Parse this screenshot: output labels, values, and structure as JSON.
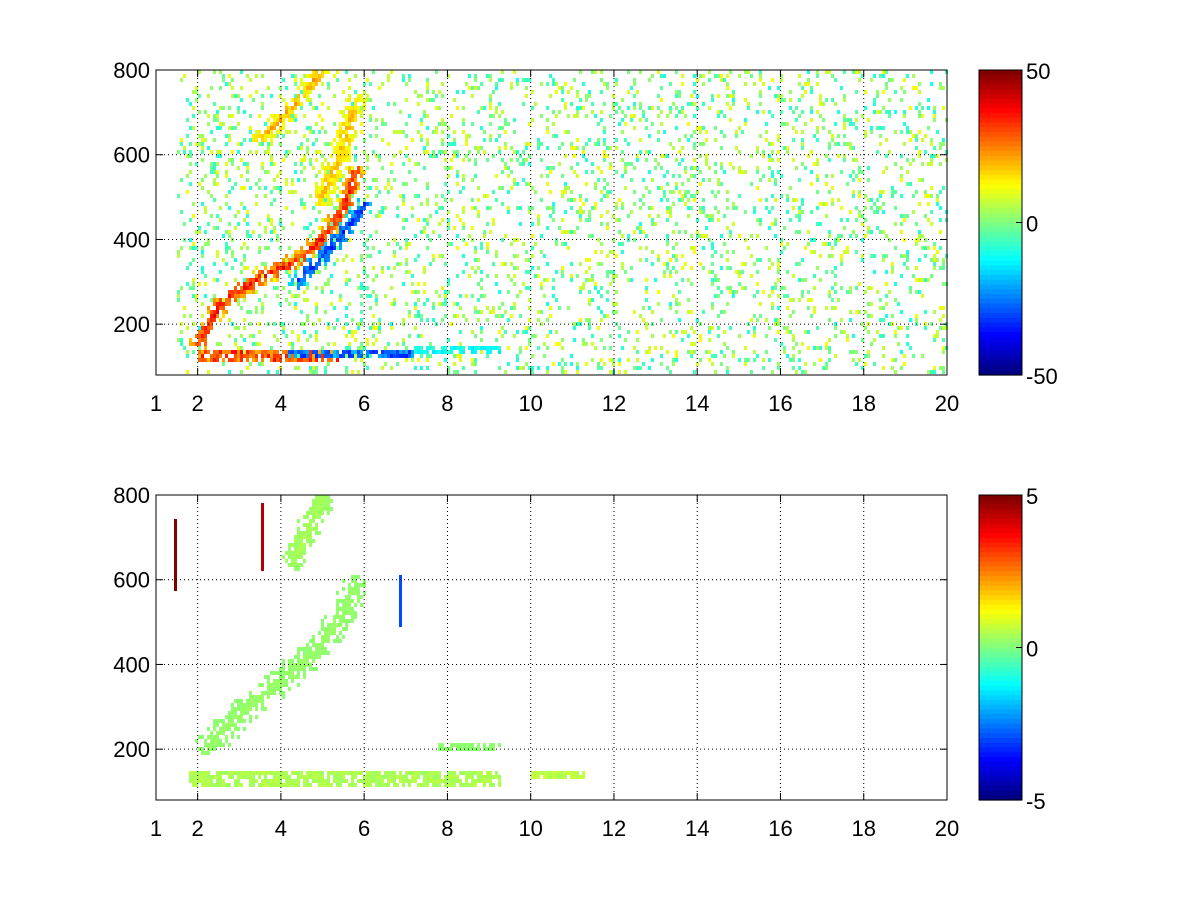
{
  "chart_data": [
    {
      "type": "heatmap",
      "title": "",
      "xlabel": "",
      "ylabel": "",
      "xlim": [
        1,
        20
      ],
      "ylim": [
        80,
        800
      ],
      "x_ticks": [
        1,
        2,
        4,
        6,
        8,
        10,
        12,
        14,
        16,
        18,
        20
      ],
      "y_ticks": [
        200,
        400,
        600,
        800
      ],
      "grid": true,
      "colormap": "jet",
      "clim": [
        -50,
        50
      ],
      "colorbar_ticks": [
        50,
        0,
        -50
      ],
      "colorbar_tick_labels": [
        "50",
        "0",
        "-50"
      ],
      "features": [
        {
          "kind": "curve",
          "points": [
            [
              2.0,
              150
            ],
            [
              2.5,
              240
            ],
            [
              3.0,
              280
            ],
            [
              3.5,
              310
            ],
            [
              4.0,
              330
            ],
            [
              4.5,
              360
            ],
            [
              5.0,
              400
            ],
            [
              5.5,
              470
            ],
            [
              5.8,
              560
            ]
          ],
          "value": 42,
          "width": 45
        },
        {
          "kind": "curve",
          "points": [
            [
              4.4,
              300
            ],
            [
              4.8,
              340
            ],
            [
              5.2,
              380
            ],
            [
              5.6,
              430
            ],
            [
              6.0,
              480
            ]
          ],
          "value": -40,
          "width": 40
        },
        {
          "kind": "curve",
          "points": [
            [
              3.5,
              640
            ],
            [
              4.0,
              680
            ],
            [
              4.5,
              740
            ],
            [
              4.9,
              790
            ]
          ],
          "value": 25,
          "width": 45
        },
        {
          "kind": "curve",
          "points": [
            [
              5.0,
              500
            ],
            [
              5.4,
              600
            ],
            [
              5.8,
              720
            ]
          ],
          "value": 22,
          "width": 60
        },
        {
          "kind": "band",
          "x": [
            2.0,
            5.5
          ],
          "y": 125,
          "value": 38,
          "width": 30
        },
        {
          "kind": "band",
          "x": [
            4.2,
            7.2
          ],
          "y": 130,
          "value": -35,
          "width": 25
        },
        {
          "kind": "band",
          "x": [
            7.2,
            9.3
          ],
          "y": 140,
          "value": -15,
          "width": 20
        },
        {
          "kind": "scatter",
          "x": [
            1.5,
            20
          ],
          "y": [
            80,
            800
          ],
          "value_range": [
            -10,
            12
          ],
          "density": 0.16
        }
      ]
    },
    {
      "type": "heatmap",
      "title": "",
      "xlabel": "",
      "ylabel": "",
      "xlim": [
        1,
        20
      ],
      "ylim": [
        80,
        800
      ],
      "x_ticks": [
        1,
        2,
        4,
        6,
        8,
        10,
        12,
        14,
        16,
        18,
        20
      ],
      "y_ticks": [
        200,
        400,
        600,
        800
      ],
      "grid": true,
      "colormap": "jet",
      "clim": [
        -5,
        5
      ],
      "colorbar_ticks": [
        5,
        0,
        -5
      ],
      "colorbar_tick_labels": [
        "5",
        "0",
        "-5"
      ],
      "features": [
        {
          "kind": "curve",
          "points": [
            [
              2.3,
              210
            ],
            [
              3.0,
              280
            ],
            [
              3.5,
              320
            ],
            [
              4.0,
              360
            ],
            [
              4.5,
              400
            ],
            [
              5.0,
              450
            ],
            [
              5.5,
              520
            ],
            [
              5.8,
              580
            ]
          ],
          "value": 0.3,
          "width": 70
        },
        {
          "kind": "curve",
          "points": [
            [
              4.3,
              650
            ],
            [
              4.7,
              730
            ],
            [
              5.0,
              790
            ]
          ],
          "value": 0.5,
          "width": 60
        },
        {
          "kind": "band",
          "x": [
            1.8,
            9.3
          ],
          "y": 130,
          "value": 0.6,
          "width": 30
        },
        {
          "kind": "band",
          "x": [
            7.8,
            9.3
          ],
          "y": 205,
          "value": 0.2,
          "width": 15
        },
        {
          "kind": "band",
          "x": [
            10.0,
            11.3
          ],
          "y": 140,
          "value": 0.8,
          "width": 12
        },
        {
          "kind": "spike",
          "x": 1.45,
          "y": [
            570,
            740
          ],
          "value": 5
        },
        {
          "kind": "spike",
          "x": 3.55,
          "y": [
            620,
            780
          ],
          "value": 4.5
        },
        {
          "kind": "spike",
          "x": 6.85,
          "y": [
            490,
            610
          ],
          "value": -3
        }
      ]
    }
  ]
}
